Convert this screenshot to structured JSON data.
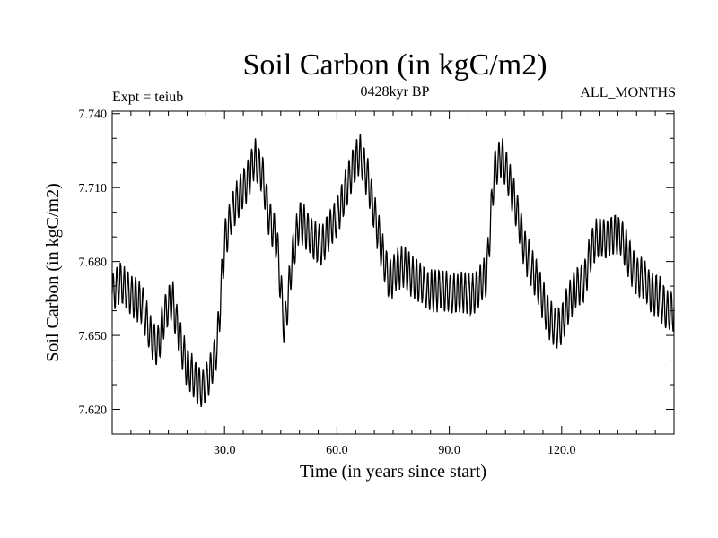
{
  "chart_data": {
    "type": "line",
    "title": "Soil Carbon (in kgC/m2)",
    "subtitle": "0428kyr BP",
    "left_label": "Expt = teiub",
    "right_label": "ALL_MONTHS",
    "xlabel": "Time (in years since start)",
    "ylabel": "Soil Carbon (in kgC/m2)",
    "xlim": [
      0,
      150
    ],
    "ylim": [
      7.61,
      7.741
    ],
    "xticks": [
      30,
      60,
      90,
      120
    ],
    "xtick_labels": [
      "30.0",
      "60.0",
      "90.0",
      "120.0"
    ],
    "yticks": [
      7.62,
      7.65,
      7.68,
      7.71,
      7.74
    ],
    "ytick_labels": [
      "7.620",
      "7.650",
      "7.680",
      "7.710",
      "7.740"
    ],
    "grid": false,
    "series": [
      {
        "name": "Soil Carbon",
        "x": [
          0,
          2,
          4,
          6,
          8,
          10,
          12,
          14,
          16,
          18,
          20,
          22,
          24,
          26,
          28,
          30,
          32,
          34,
          36,
          38,
          40,
          42,
          44,
          46,
          48,
          50,
          52,
          54,
          56,
          58,
          60,
          62,
          64,
          66,
          68,
          70,
          72,
          74,
          76,
          78,
          80,
          82,
          84,
          86,
          88,
          90,
          92,
          94,
          96,
          98,
          100,
          102,
          104,
          106,
          108,
          110,
          112,
          114,
          116,
          118,
          120,
          122,
          124,
          126,
          128,
          130,
          132,
          134,
          136,
          138,
          140,
          142,
          144,
          146,
          148,
          150
        ],
        "trend": [
          7.667,
          7.672,
          7.668,
          7.665,
          7.663,
          7.651,
          7.645,
          7.658,
          7.665,
          7.649,
          7.637,
          7.632,
          7.628,
          7.634,
          7.645,
          7.688,
          7.7,
          7.707,
          7.712,
          7.722,
          7.716,
          7.697,
          7.688,
          7.652,
          7.68,
          7.697,
          7.693,
          7.688,
          7.686,
          7.693,
          7.698,
          7.707,
          7.717,
          7.724,
          7.715,
          7.7,
          7.684,
          7.672,
          7.677,
          7.678,
          7.674,
          7.672,
          7.668,
          7.668,
          7.669,
          7.667,
          7.667,
          7.668,
          7.666,
          7.67,
          7.675,
          7.717,
          7.723,
          7.713,
          7.701,
          7.686,
          7.677,
          7.67,
          7.659,
          7.653,
          7.654,
          7.664,
          7.67,
          7.671,
          7.686,
          7.69,
          7.689,
          7.691,
          7.69,
          7.681,
          7.674,
          7.673,
          7.667,
          7.666,
          7.66,
          7.66
        ],
        "oscillation_amplitude": 0.008,
        "oscillation_period_years": 1
      }
    ]
  }
}
